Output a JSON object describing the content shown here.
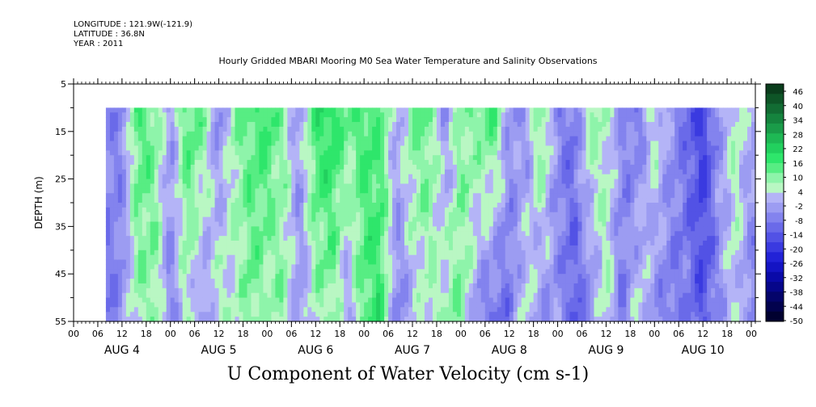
{
  "header": {
    "longitude": "LONGITUDE : 121.9W(-121.9)",
    "latitude": "LATITUDE : 36.8N",
    "year": "YEAR : 2011",
    "title": "Hourly Gridded MBARI Mooring M0 Sea Water Temperature and Salinity Observations"
  },
  "chart_data": {
    "type": "heatmap",
    "title": "U Component of Water Velocity (cm s-1)",
    "ylabel": "DEPTH (m)",
    "ylim": [
      55,
      5
    ],
    "y_ticks": [
      "5",
      "15",
      "25",
      "35",
      "45",
      "55"
    ],
    "x_hour_ticks": [
      "00",
      "06",
      "12",
      "18",
      "00",
      "06",
      "12",
      "18",
      "00",
      "06",
      "12",
      "18",
      "00",
      "06",
      "12",
      "18",
      "00",
      "06",
      "12",
      "18",
      "00",
      "06",
      "12",
      "18",
      "00",
      "06",
      "12",
      "18",
      "00"
    ],
    "x_day_labels": [
      "AUG  4",
      "AUG  5",
      "AUG  6",
      "AUG  7",
      "AUG  8",
      "AUG  9",
      "AUG 10"
    ],
    "x_range_hours": [
      0,
      169
    ],
    "data_hours_range": [
      8,
      169
    ],
    "data_depth_range": [
      10,
      55
    ],
    "colorbar_levels": [
      "46",
      "40",
      "34",
      "28",
      "22",
      "16",
      "10",
      "4",
      "-2",
      "-8",
      "-14",
      "-20",
      "-26",
      "-32",
      "-38",
      "-44",
      "-50"
    ],
    "colorbar_colors": [
      "#0a3d1c",
      "#0e5527",
      "#126c33",
      "#15843e",
      "#1a9c49",
      "#1eb854",
      "#22d05e",
      "#2ee66b",
      "#57ed83",
      "#8ef4aa",
      "#b9f7c3",
      "#b4b4f7",
      "#9c9cf2",
      "#8383ee",
      "#6a6ae9",
      "#5252e5",
      "#3a3ae0",
      "#2222d7",
      "#1414c4",
      "#0a0aa8",
      "#06068a",
      "#04046a",
      "#02024e",
      "#010130"
    ],
    "u_profile_hours": [
      8,
      12,
      16,
      20,
      24,
      28,
      32,
      36,
      40,
      44,
      48,
      52,
      56,
      60,
      64,
      68,
      72,
      76,
      80,
      84,
      88,
      92,
      96,
      100,
      104,
      108,
      112,
      116,
      120,
      124,
      128,
      132,
      136,
      140,
      144,
      148,
      152,
      156,
      160,
      164,
      168
    ],
    "u_surface_cm_s": [
      -6,
      -8,
      14,
      10,
      -4,
      14,
      10,
      -8,
      8,
      12,
      16,
      6,
      -4,
      16,
      18,
      10,
      14,
      12,
      -2,
      10,
      12,
      -6,
      8,
      10,
      14,
      -4,
      -6,
      12,
      -8,
      -10,
      8,
      4,
      -6,
      -10,
      6,
      -4,
      -12,
      -20,
      -4,
      6,
      -2
    ],
    "u_bottom_cm_s": [
      -10,
      -6,
      6,
      8,
      -8,
      4,
      -6,
      6,
      2,
      10,
      4,
      8,
      -6,
      4,
      8,
      -4,
      12,
      16,
      -8,
      -2,
      4,
      6,
      10,
      -6,
      -12,
      -10,
      4,
      -6,
      -4,
      -14,
      -8,
      6,
      -10,
      4,
      -6,
      -10,
      -8,
      -16,
      -6,
      2,
      -8
    ]
  }
}
